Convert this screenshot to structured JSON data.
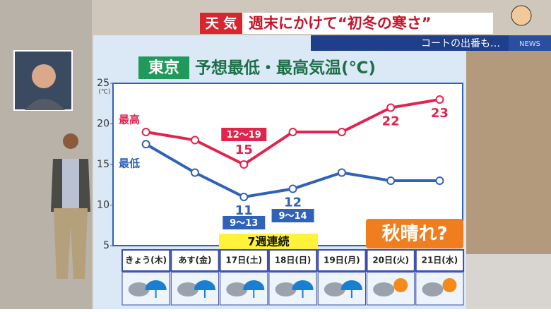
{
  "header": {
    "category": "天 気",
    "headline": "週末にかけて“初冬の寒さ”",
    "subline": "コートの出番も…",
    "logo": "NEWS"
  },
  "chart_data": {
    "type": "line",
    "location": "東京",
    "title": "予想最低・最高気温(℃)",
    "y_unit": "(℃)",
    "categories": [
      "きょう(木)",
      "あす(金)",
      "17日(土)",
      "18日(日)",
      "19日(月)",
      "20日(火)",
      "21日(水)"
    ],
    "series": [
      {
        "name": "最高",
        "color": "#e2234d",
        "values": [
          19,
          18,
          15,
          19,
          19,
          22,
          23
        ],
        "value_labels": [
          null,
          null,
          "15",
          null,
          null,
          "22",
          "23"
        ]
      },
      {
        "name": "最低",
        "color": "#2f62b8",
        "values": [
          17.5,
          14,
          11,
          12,
          14,
          13,
          13
        ],
        "value_labels": [
          null,
          null,
          "11",
          "12",
          null,
          null,
          null
        ]
      }
    ],
    "annotations": [
      "12〜19",
      "9〜13",
      "9〜14",
      "7週連続",
      "秋晴れ?"
    ],
    "ylim": [
      5,
      25
    ],
    "yticks": [
      5,
      10,
      15,
      20,
      25
    ],
    "grid": false
  }
}
